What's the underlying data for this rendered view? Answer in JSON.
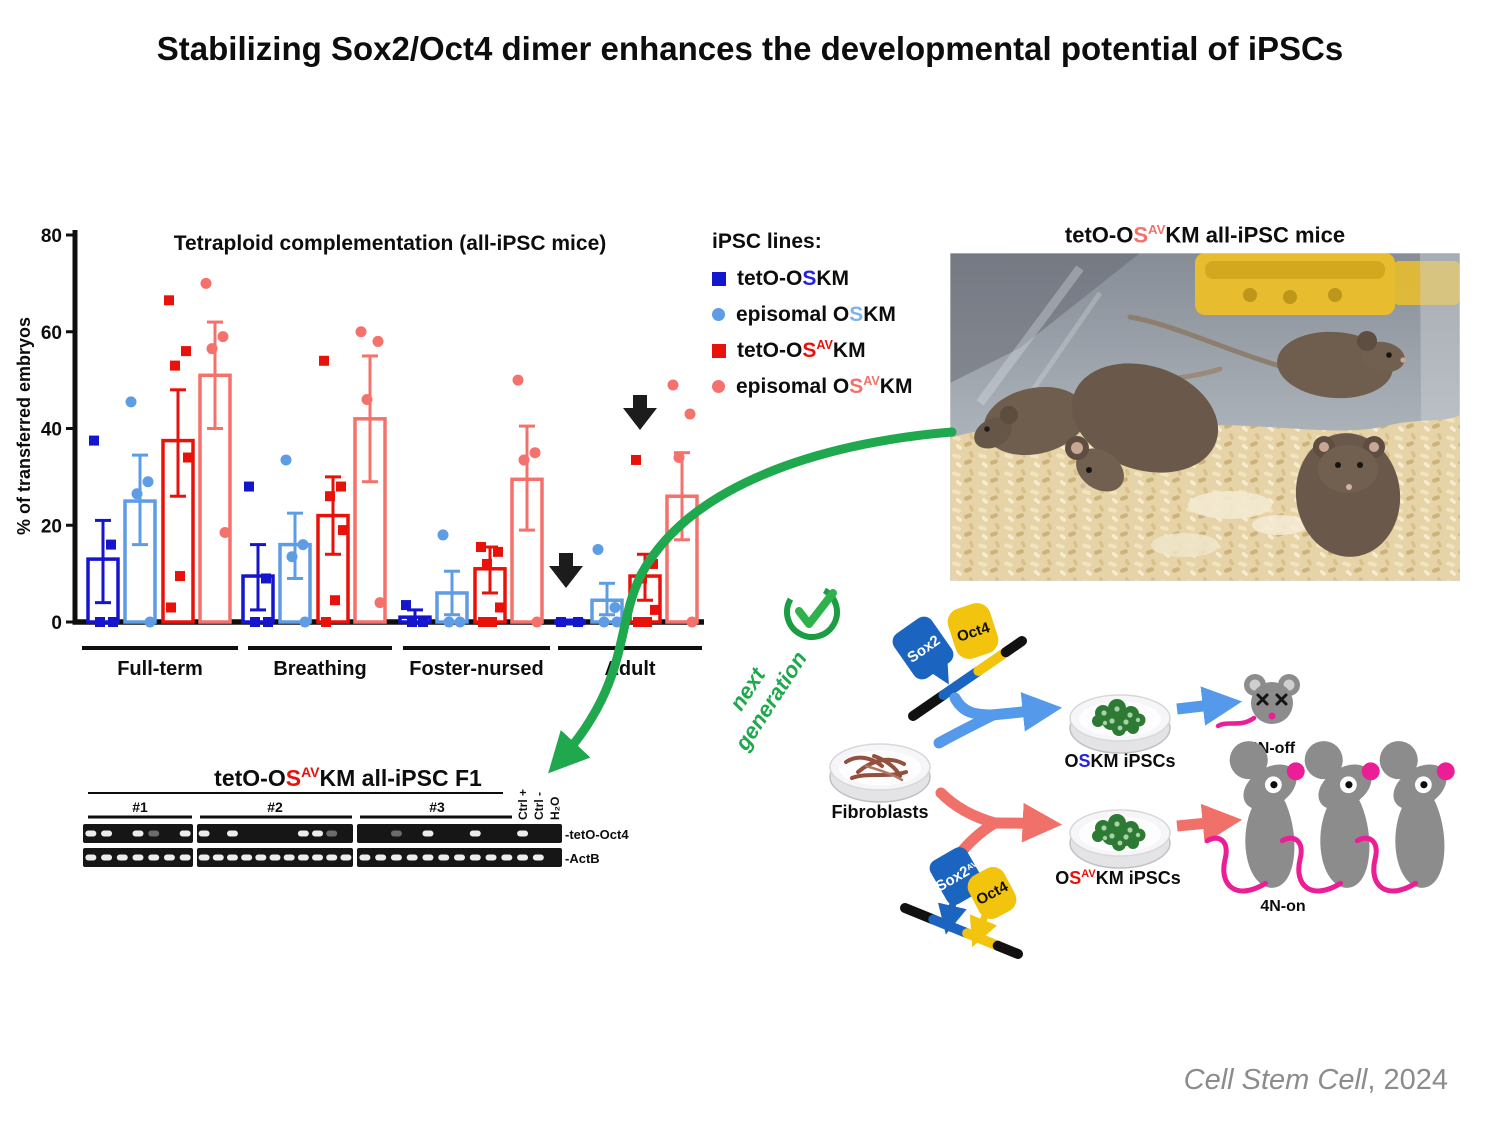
{
  "title": "Stabilizing Sox2/Oct4 dimer enhances the developmental potential of iPSCs",
  "colors": {
    "dark_blue": "#1515CD",
    "light_blue": "#5E9CE4",
    "dark_red": "#E8120B",
    "light_red": "#F4716C",
    "legend_s_blue": "#2323E0",
    "legend_s_light_blue": "#7FB2EC",
    "green": "#1FA84D",
    "magenta": "#EC1E96",
    "sox2_blue": "#1B64C0",
    "oct4_yellow": "#F2C40E",
    "mouse_gray": "#8C8C8C",
    "colony_green": "#2C7A33",
    "citation_gray": "#8C8C8C"
  },
  "chart_data": {
    "type": "bar",
    "title": "Tetraploid complementation (all-iPSC mice)",
    "ylabel": "% of transferred embryos",
    "ylim": [
      0,
      80
    ],
    "yticks": [
      0,
      20,
      40,
      60,
      80
    ],
    "grid": false,
    "legend_position": "right",
    "categories": [
      "Full-term",
      "Breathing",
      "Foster-nursed",
      "Adult"
    ],
    "series": [
      {
        "name": "tetO-OSKM",
        "marker": "square",
        "color": "#1515CD",
        "values": [
          13,
          9.5,
          1,
          0
        ],
        "err_low": [
          4,
          2.5,
          0,
          0
        ],
        "err_high": [
          21,
          16,
          2.5,
          0
        ],
        "points": [
          [
            37.5,
            16,
            0,
            0
          ],
          [
            28,
            9,
            0,
            0
          ],
          [
            3.5,
            0,
            0
          ],
          [
            0,
            0
          ]
        ]
      },
      {
        "name": "episomal OSKM",
        "marker": "circle",
        "color": "#5E9CE4",
        "values": [
          25,
          16,
          6,
          4.5
        ],
        "err_low": [
          16,
          9,
          1.5,
          1.5
        ],
        "err_high": [
          34.5,
          22.5,
          10.5,
          8
        ],
        "points": [
          [
            45.5,
            29,
            26.5,
            0
          ],
          [
            33.5,
            16,
            13.5,
            0
          ],
          [
            18,
            0,
            0
          ],
          [
            15,
            3,
            0,
            0
          ]
        ]
      },
      {
        "name": "tetO-OSAVKM",
        "marker": "square",
        "color": "#E8120B",
        "values": [
          37.5,
          22,
          11,
          9.5
        ],
        "err_low": [
          26,
          14,
          6,
          4.5
        ],
        "err_high": [
          48,
          30,
          15.5,
          14
        ],
        "points": [
          [
            66.5,
            56,
            53,
            34,
            9.5,
            3
          ],
          [
            54,
            28,
            26,
            19,
            4.5,
            0
          ],
          [
            15.5,
            14.5,
            12,
            3,
            0,
            0
          ],
          [
            33.5,
            12,
            9,
            2.5,
            0,
            0
          ]
        ]
      },
      {
        "name": "episomal OSAVKM",
        "marker": "circle",
        "color": "#F4716C",
        "values": [
          51,
          42,
          29.5,
          26
        ],
        "err_low": [
          40,
          29,
          19,
          17
        ],
        "err_high": [
          62,
          55,
          40.5,
          35
        ],
        "points": [
          [
            70,
            59,
            56.5,
            18.5
          ],
          [
            60,
            58,
            46,
            4
          ],
          [
            50,
            35,
            33.5,
            0
          ],
          [
            49,
            43,
            34,
            0
          ]
        ]
      }
    ],
    "annotations": [
      {
        "type": "down-arrow",
        "note": "no adult tetO-OSKM mice",
        "x": 556,
        "y": 343
      },
      {
        "type": "down-arrow",
        "note": "adult tetO-OSAVKM mice",
        "x": 630,
        "y": 185
      }
    ]
  },
  "legend": {
    "header": "iPSC lines:",
    "items": [
      {
        "pre": "tetO-O",
        "s": "S",
        "sup": "",
        "post": "KM"
      },
      {
        "pre": "episomal O",
        "s": "S",
        "sup": "",
        "post": "KM"
      },
      {
        "pre": "tetO-O",
        "s": "S",
        "sup": "AV",
        "post": "KM"
      },
      {
        "pre": "episomal O",
        "s": "S",
        "sup": "AV",
        "post": "KM"
      }
    ]
  },
  "photo": {
    "label": {
      "pre": "tetO-O",
      "s": "S",
      "sup": "AV",
      "post": "KM all-iPSC mice"
    }
  },
  "gel": {
    "title": {
      "pre": "tetO-O",
      "s": "S",
      "sup": "AV",
      "post": "KM all-iPSC F1"
    },
    "groups": [
      "#1",
      "#2",
      "#3"
    ],
    "control_labels": [
      "Ctrl +",
      "Ctrl -",
      "H₂O"
    ],
    "row_labels": [
      "-tetO-Oct4",
      "-ActB"
    ],
    "lanes": [
      7,
      11,
      13
    ],
    "tetO_Oct4_bands": [
      [
        1,
        1,
        0,
        1,
        0.4,
        0,
        1
      ],
      [
        1,
        0,
        1,
        0,
        0,
        0,
        0,
        1,
        1,
        0.4,
        0
      ],
      [
        0,
        0,
        0.4,
        0,
        1,
        0,
        0,
        1,
        0,
        0,
        1,
        0,
        0
      ]
    ],
    "ActB_bands": [
      [
        1,
        1,
        1,
        1,
        1,
        1,
        1
      ],
      [
        1,
        1,
        1,
        1,
        1,
        1,
        1,
        1,
        1,
        1,
        1
      ],
      [
        1,
        1,
        1,
        1,
        1,
        1,
        1,
        1,
        1,
        1,
        1,
        1,
        0
      ]
    ]
  },
  "diagram": {
    "sox2": "Sox2",
    "oct4": "Oct4",
    "sox2av": {
      "base": "Sox2",
      "sup": "AV"
    },
    "oct4_2": "Oct4",
    "fibroblasts": "Fibroblasts",
    "oskm_label": {
      "o": "O",
      "s": "S",
      "post": "KM iPSCs"
    },
    "osavkm_label": {
      "o": "O",
      "s": "S",
      "sup": "AV",
      "post": "KM iPSCs"
    },
    "n4_off": "4N-off",
    "n4_on": "4N-on",
    "next_gen": {
      "line1": "next",
      "line2": "generation"
    }
  },
  "citation": {
    "journal": "Cell Stem Cell",
    "suffix": ", 2024"
  }
}
